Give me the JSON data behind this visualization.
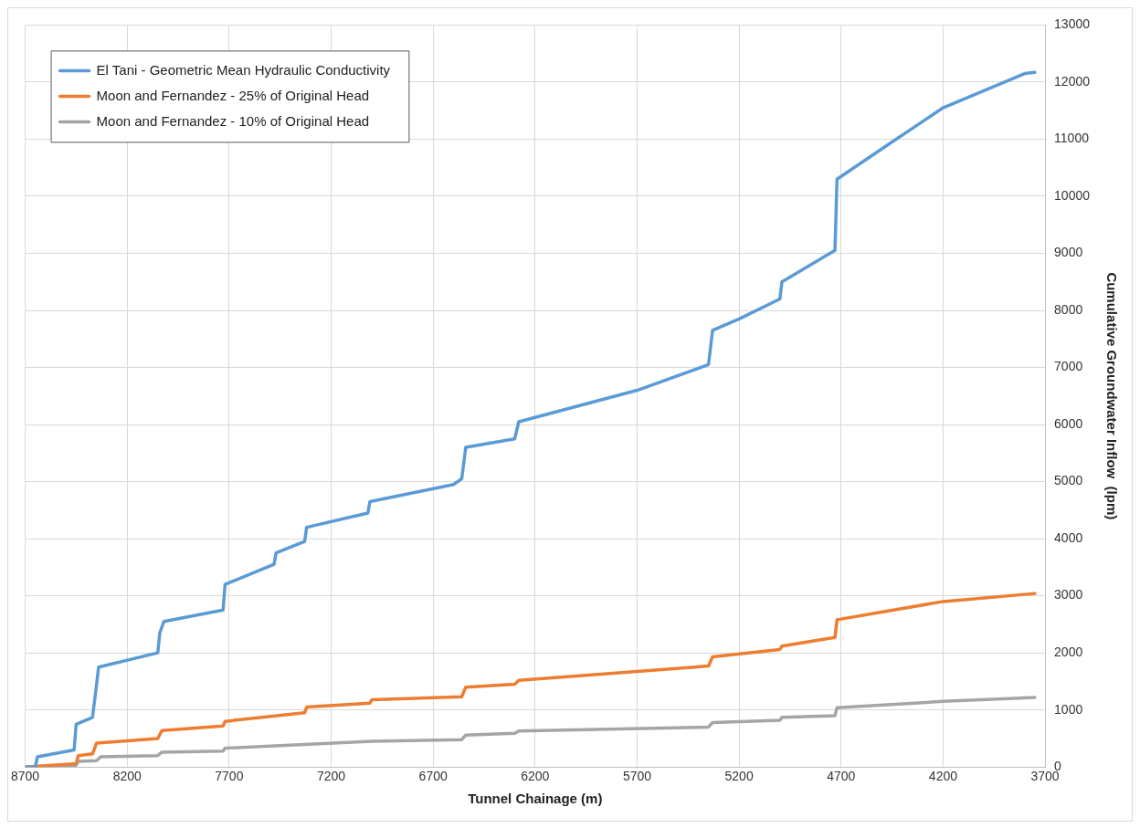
{
  "chart_data": {
    "type": "line",
    "xlabel": "Tunnel Chainage (m)",
    "ylabel": "Cumulative Groundwater Inflow  (lpm)",
    "xlim": [
      8700,
      3700
    ],
    "xticks": [
      8700,
      8200,
      7700,
      7200,
      6700,
      6200,
      5700,
      5200,
      4700,
      4200,
      3700
    ],
    "ylim": [
      0,
      13000
    ],
    "yticks": [
      0,
      1000,
      2000,
      3000,
      4000,
      5000,
      6000,
      7000,
      8000,
      9000,
      10000,
      11000,
      12000,
      13000
    ],
    "grid": true,
    "legend": "top left",
    "marker": "none",
    "line_style": "solid",
    "series": [
      {
        "name": "El Tani - Geometric Mean Hydraulic Conductivity",
        "color": "#5b9bd5",
        "x": [
          8700,
          8650,
          8640,
          8460,
          8450,
          8370,
          8355,
          8340,
          8050,
          8040,
          8020,
          7730,
          7720,
          7480,
          7470,
          7330,
          7320,
          7020,
          7010,
          6600,
          6560,
          6540,
          6300,
          6280,
          5700,
          5350,
          5330,
          5200,
          5000,
          4990,
          4730,
          4720,
          4450,
          4200,
          4000,
          3800,
          3750
        ],
        "values": [
          0,
          0,
          180,
          300,
          750,
          870,
          1300,
          1750,
          2000,
          2350,
          2550,
          2750,
          3200,
          3550,
          3750,
          3950,
          4200,
          4450,
          4650,
          4950,
          5050,
          5600,
          5750,
          6050,
          6600,
          7050,
          7650,
          7850,
          8200,
          8500,
          9050,
          10300,
          10950,
          11550,
          11850,
          12150,
          12170
        ]
      },
      {
        "name": "Moon and Fernandez - 25% of Original Head",
        "color": "#ed7d31",
        "x": [
          8700,
          8450,
          8440,
          8370,
          8350,
          8050,
          8030,
          7730,
          7720,
          7330,
          7320,
          7010,
          7000,
          6560,
          6540,
          6300,
          6280,
          5350,
          5330,
          5000,
          4990,
          4730,
          4720,
          4200,
          3750
        ],
        "values": [
          0,
          60,
          200,
          230,
          420,
          500,
          640,
          720,
          800,
          950,
          1050,
          1120,
          1180,
          1230,
          1400,
          1450,
          1520,
          1770,
          1930,
          2060,
          2120,
          2270,
          2580,
          2900,
          3040
        ]
      },
      {
        "name": "Moon and Fernandez - 10% of Original Head",
        "color": "#a5a5a5",
        "x": [
          8700,
          8450,
          8440,
          8350,
          8330,
          8050,
          8030,
          7730,
          7720,
          7000,
          6560,
          6540,
          6300,
          6280,
          5350,
          5330,
          5000,
          4990,
          4730,
          4720,
          4200,
          3750
        ],
        "values": [
          0,
          30,
          100,
          110,
          180,
          200,
          260,
          280,
          330,
          450,
          480,
          560,
          590,
          630,
          700,
          780,
          820,
          870,
          900,
          1040,
          1150,
          1220
        ]
      }
    ]
  }
}
